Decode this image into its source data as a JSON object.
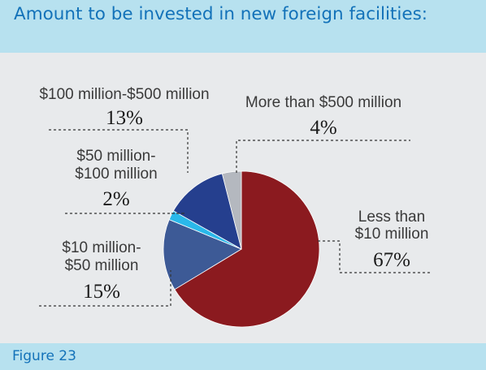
{
  "title": "Amount to be invested in new foreign facilities:",
  "figure_label": "Figure 23",
  "colors": {
    "header_band": "#b7e1ef",
    "panel": "#e8eaec",
    "title_text": "#1372b9"
  },
  "chart_data": {
    "type": "pie",
    "title": "Amount to be invested in new foreign facilities:",
    "slices": [
      {
        "label": "Less than $10 million",
        "label_lines": [
          "Less than",
          "$10 million"
        ],
        "value": 67,
        "display": "67%",
        "color": "#8b1a1f"
      },
      {
        "label": "$10 million-$50 million",
        "label_lines": [
          "$10 million-",
          "$50 million"
        ],
        "value": 15,
        "display": "15%",
        "color": "#3d5a96"
      },
      {
        "label": "$50 million-$100 million",
        "label_lines": [
          "$50 million-",
          "$100 million"
        ],
        "value": 2,
        "display": "2%",
        "color": "#2ab8ea"
      },
      {
        "label": "$100 million-$500 million",
        "label_lines": [
          "$100 million-$500 million"
        ],
        "value": 13,
        "display": "13%",
        "color": "#253f8e"
      },
      {
        "label": "More than $500 million",
        "label_lines": [
          "More than $500 million"
        ],
        "value": 4,
        "display": "4%",
        "color": "#b4b8bf"
      }
    ]
  }
}
